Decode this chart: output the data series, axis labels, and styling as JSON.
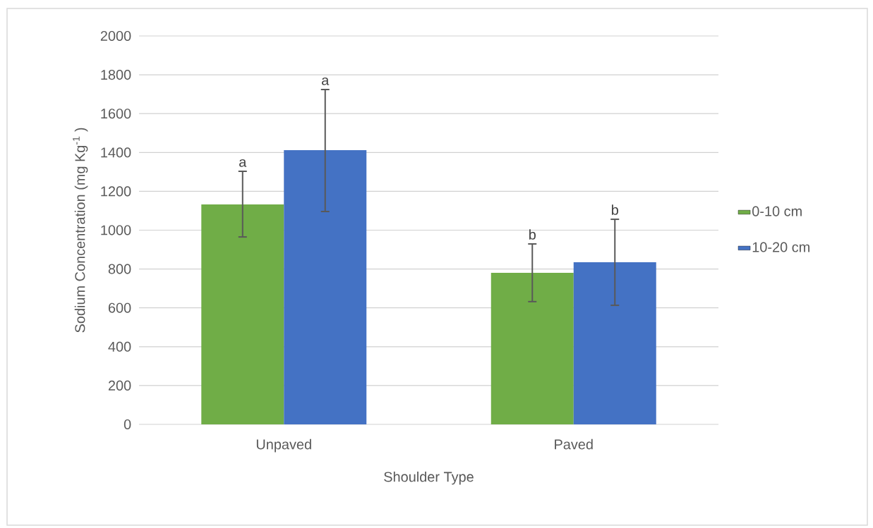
{
  "chart_data": {
    "type": "bar",
    "xlabel": "Shoulder Type",
    "ylabel": "Sodium Concentration (mg Kg$^{-1}$ )",
    "categories": [
      "Unpaved",
      "Paved"
    ],
    "series": [
      {
        "name": "0-10 cm",
        "color": "#70ad47",
        "values": [
          1132,
          780
        ],
        "errors": [
          [
            965,
            1303
          ],
          [
            632,
            929
          ]
        ]
      },
      {
        "name": "10-20 cm",
        "color": "#4472c4",
        "values": [
          1412,
          835
        ],
        "errors": [
          [
            1096,
            1724
          ],
          [
            613,
            1056
          ]
        ]
      }
    ],
    "annotations": [
      "a",
      "a",
      "b",
      "b"
    ],
    "ylim": [
      0,
      2000
    ],
    "yticks": [
      0,
      200,
      400,
      600,
      800,
      1000,
      1200,
      1400,
      1600,
      1800,
      2000
    ],
    "grid": "y",
    "legend": "right"
  }
}
